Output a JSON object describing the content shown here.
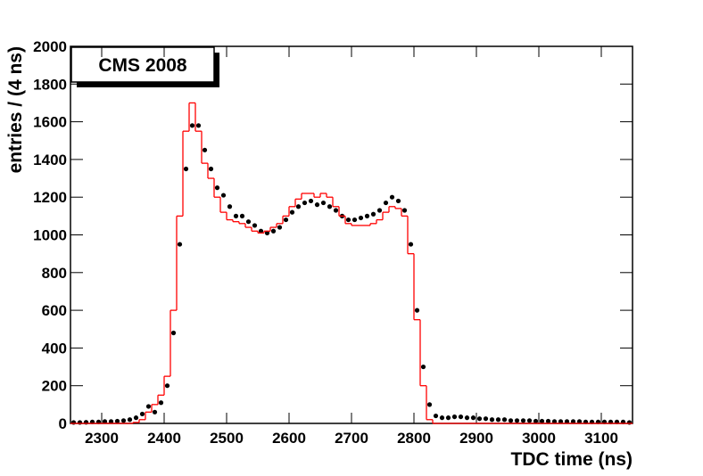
{
  "chart_data": {
    "type": "histogram",
    "annotation": "CMS 2008",
    "x_label": "TDC time (ns)",
    "y_label": "entries / (4 ns)",
    "xlim": [
      2250,
      3150
    ],
    "ylim": [
      0,
      2000
    ],
    "xticks": [
      2300,
      2400,
      2500,
      2600,
      2700,
      2800,
      2900,
      3000,
      3100
    ],
    "yticks": [
      0,
      200,
      400,
      600,
      800,
      1000,
      1200,
      1400,
      1600,
      1800,
      2000
    ],
    "x": [
      2255,
      2265,
      2275,
      2285,
      2295,
      2305,
      2315,
      2325,
      2335,
      2345,
      2355,
      2365,
      2375,
      2385,
      2395,
      2405,
      2415,
      2425,
      2435,
      2445,
      2455,
      2465,
      2475,
      2485,
      2495,
      2505,
      2515,
      2525,
      2535,
      2545,
      2555,
      2565,
      2575,
      2585,
      2595,
      2605,
      2615,
      2625,
      2635,
      2645,
      2655,
      2665,
      2675,
      2685,
      2695,
      2705,
      2715,
      2725,
      2735,
      2745,
      2755,
      2765,
      2775,
      2785,
      2795,
      2805,
      2815,
      2825,
      2835,
      2845,
      2855,
      2865,
      2875,
      2885,
      2895,
      2905,
      2915,
      2925,
      2935,
      2945,
      2955,
      2965,
      2975,
      2985,
      2995,
      3005,
      3015,
      3025,
      3035,
      3045,
      3055,
      3065,
      3075,
      3085,
      3095,
      3105,
      3115,
      3125,
      3135,
      3145
    ],
    "series": [
      {
        "style": "points",
        "color": "#000000",
        "values": [
          5,
          5,
          6,
          8,
          8,
          10,
          10,
          12,
          15,
          20,
          30,
          50,
          90,
          60,
          110,
          200,
          480,
          950,
          1350,
          1580,
          1580,
          1450,
          1350,
          1250,
          1210,
          1150,
          1100,
          1100,
          1070,
          1050,
          1020,
          1010,
          1020,
          1040,
          1080,
          1120,
          1150,
          1170,
          1180,
          1160,
          1170,
          1150,
          1130,
          1100,
          1080,
          1080,
          1090,
          1100,
          1110,
          1130,
          1170,
          1200,
          1180,
          1130,
          950,
          600,
          300,
          100,
          40,
          30,
          30,
          35,
          35,
          30,
          30,
          25,
          25,
          20,
          20,
          20,
          15,
          15,
          15,
          15,
          12,
          12,
          12,
          10,
          10,
          10,
          10,
          10,
          8,
          8,
          8,
          8,
          8,
          8,
          8,
          5
        ]
      },
      {
        "style": "step",
        "color": "#ff0000",
        "values": [
          0,
          0,
          0,
          0,
          0,
          0,
          0,
          0,
          0,
          0,
          5,
          20,
          60,
          100,
          150,
          250,
          600,
          1100,
          1550,
          1700,
          1550,
          1380,
          1300,
          1200,
          1120,
          1080,
          1070,
          1060,
          1040,
          1020,
          1010,
          1020,
          1040,
          1060,
          1100,
          1150,
          1190,
          1220,
          1220,
          1200,
          1220,
          1200,
          1150,
          1100,
          1060,
          1050,
          1050,
          1050,
          1060,
          1080,
          1120,
          1150,
          1140,
          1100,
          900,
          550,
          200,
          20,
          0,
          0,
          0,
          0,
          0,
          0,
          0,
          0,
          0,
          0,
          0,
          0,
          0,
          0,
          0,
          0,
          0,
          0,
          0,
          0,
          0,
          0,
          0,
          0,
          0,
          0,
          0,
          0,
          0,
          0,
          0,
          0
        ]
      }
    ]
  }
}
